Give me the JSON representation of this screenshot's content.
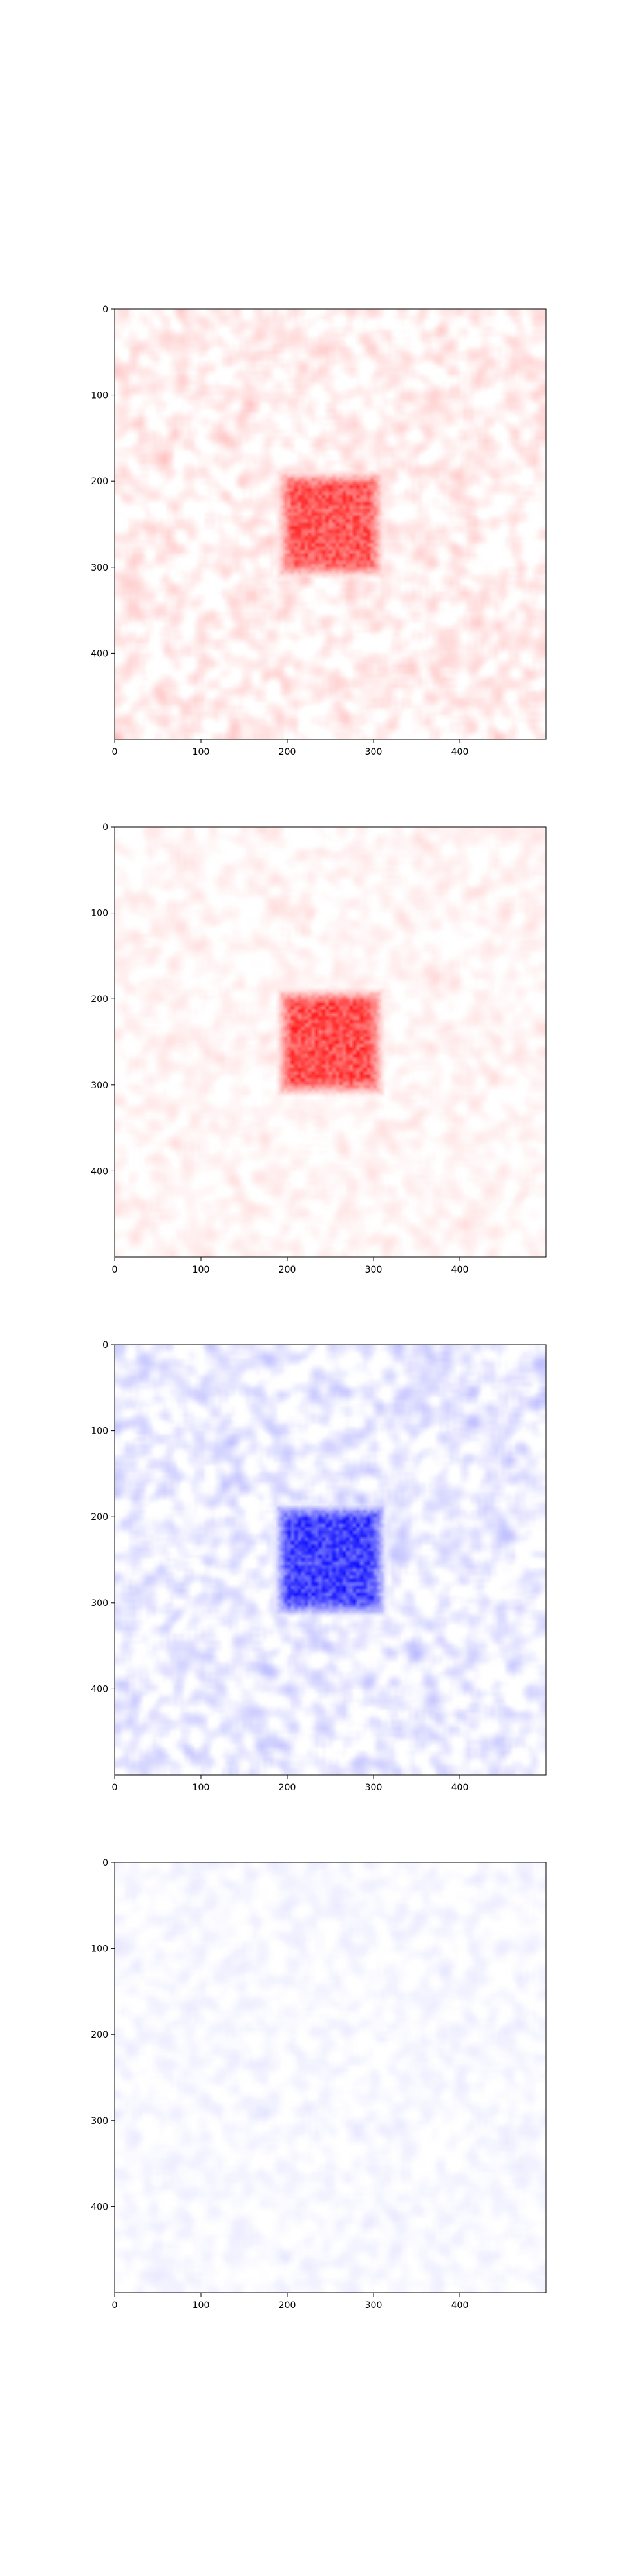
{
  "chart_data": [
    {
      "type": "heatmap",
      "name": "panel-1",
      "colormap": "white-to-red",
      "color": "#ff0000",
      "xlim": [
        0,
        500
      ],
      "ylim": [
        500,
        0
      ],
      "y_inverted": true,
      "xticks": [
        0,
        100,
        200,
        300,
        400
      ],
      "yticks": [
        0,
        100,
        200,
        300,
        400
      ],
      "xlabel": "",
      "ylabel": "",
      "title": "",
      "noise_intensity": 0.22,
      "blob": {
        "center": [
          250,
          250
        ],
        "half_size": 45,
        "intensity": 0.85
      }
    },
    {
      "type": "heatmap",
      "name": "panel-2",
      "colormap": "white-to-red",
      "color": "#ff0000",
      "xlim": [
        0,
        500
      ],
      "ylim": [
        500,
        0
      ],
      "y_inverted": true,
      "xticks": [
        0,
        100,
        200,
        300,
        400
      ],
      "yticks": [
        0,
        100,
        200,
        300,
        400
      ],
      "xlabel": "",
      "ylabel": "",
      "title": "",
      "noise_intensity": 0.13,
      "blob": {
        "center": [
          250,
          250
        ],
        "half_size": 45,
        "intensity": 0.9
      }
    },
    {
      "type": "heatmap",
      "name": "panel-3",
      "colormap": "white-to-blue",
      "color": "#0000ff",
      "xlim": [
        0,
        500
      ],
      "ylim": [
        500,
        0
      ],
      "y_inverted": true,
      "xticks": [
        0,
        100,
        200,
        300,
        400
      ],
      "yticks": [
        0,
        100,
        200,
        300,
        400
      ],
      "xlabel": "",
      "ylabel": "",
      "title": "",
      "noise_intensity": 0.25,
      "blob": {
        "center": [
          250,
          250
        ],
        "half_size": 48,
        "intensity": 0.95
      }
    },
    {
      "type": "heatmap",
      "name": "panel-4",
      "colormap": "white-to-blue",
      "color": "#0000ff",
      "xlim": [
        0,
        500
      ],
      "ylim": [
        500,
        0
      ],
      "y_inverted": true,
      "xticks": [
        0,
        100,
        200,
        300,
        400
      ],
      "yticks": [
        0,
        100,
        200,
        300,
        400
      ],
      "xlabel": "",
      "ylabel": "",
      "title": "",
      "noise_intensity": 0.09,
      "blob": null
    }
  ]
}
